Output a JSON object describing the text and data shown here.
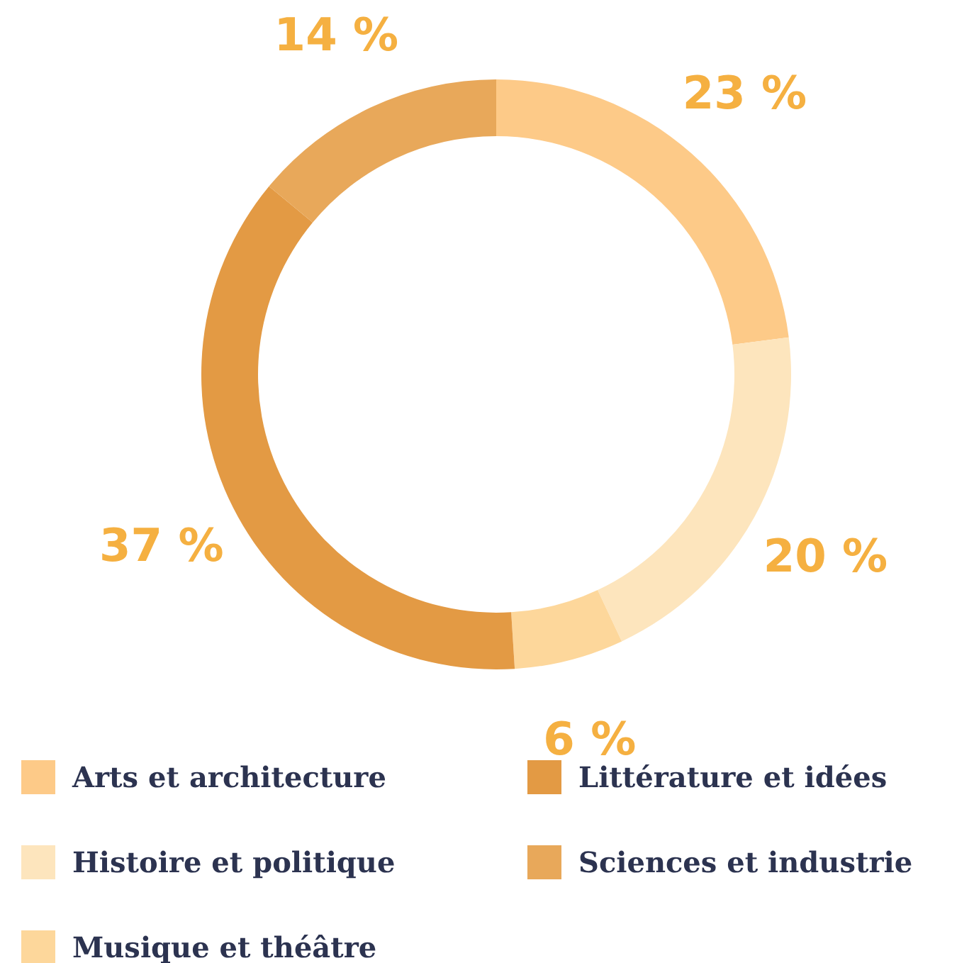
{
  "chart_data": {
    "type": "donut",
    "categories": [
      "Arts et architecture",
      "Histoire et politique",
      "Musique et théâtre",
      "Littérature et idées",
      "Sciences et industrie"
    ],
    "values": [
      23,
      20,
      6,
      37,
      14
    ],
    "colors": [
      "#fdca88",
      "#fde5bd",
      "#fdd79b",
      "#e39a44",
      "#e8a85a"
    ],
    "value_labels": [
      "23 %",
      "20 %",
      "6 %",
      "37 %",
      "14 %"
    ],
    "legend": "bottom"
  }
}
